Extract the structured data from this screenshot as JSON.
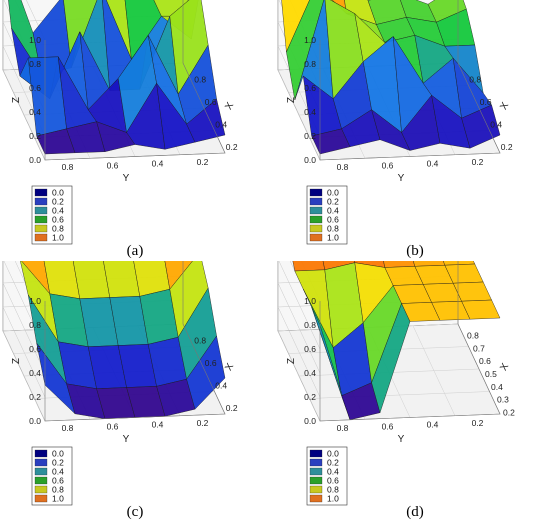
{
  "chart_data": [
    {
      "panel": "(a)",
      "type": "surface",
      "xlabel": "X",
      "ylabel": "Y",
      "zlabel": "Z",
      "x_ticks": [
        "0.2",
        "0.4",
        "0.6",
        "0.8"
      ],
      "y_ticks": [
        "0.8",
        "0.6",
        "0.4",
        "0.2"
      ],
      "z_ticks": [
        "0.0",
        "0.2",
        "0.4",
        "0.6",
        "0.8",
        "1.0"
      ],
      "zlim": [
        0,
        1
      ],
      "legend": [
        "0.0",
        "0.2",
        "0.4",
        "0.6",
        "0.8",
        "1.0"
      ],
      "legend_position": "bottom-left",
      "grid": true,
      "z_surface": [
        [
          1.0,
          0.3,
          0.6,
          0.75,
          0.7,
          0.55,
          1.0
        ],
        [
          0.5,
          0.1,
          0.15,
          0.8,
          0.2,
          0.55,
          0.35
        ],
        [
          0.25,
          0.05,
          0.6,
          0.1,
          0.1,
          0.7,
          0.9
        ],
        [
          0.55,
          0.55,
          0.1,
          0.35,
          0.7,
          0.2,
          0.6
        ],
        [
          0.05,
          0.1,
          0.15,
          0.05,
          0.45,
          0.1,
          0.3
        ],
        [
          0.05,
          0.05,
          0.05,
          0.1,
          0.05,
          0.1,
          0.15
        ]
      ]
    },
    {
      "panel": "(b)",
      "type": "surface",
      "xlabel": "X",
      "ylabel": "Y",
      "zlabel": "Z",
      "x_ticks": [
        "0.2",
        "0.4",
        "0.6",
        "0.8"
      ],
      "y_ticks": [
        "0.8",
        "0.6",
        "0.4",
        "0.2"
      ],
      "z_ticks": [
        "0.0",
        "0.2",
        "0.4",
        "0.6",
        "0.8",
        "1.0"
      ],
      "zlim": [
        0,
        1
      ],
      "legend": [
        "0.0",
        "0.2",
        "0.4",
        "0.6",
        "0.8",
        "1.0"
      ],
      "legend_position": "bottom-left",
      "grid": true,
      "z_surface": [
        [
          0.9,
          1.0,
          0.95,
          0.55,
          0.6,
          0.5,
          0.65
        ],
        [
          0.3,
          0.85,
          0.6,
          0.5,
          0.55,
          0.5,
          0.6
        ],
        [
          0.05,
          0.9,
          0.75,
          0.5,
          0.55,
          0.45,
          0.45
        ],
        [
          0.4,
          0.2,
          0.5,
          0.7,
          0.3,
          0.5,
          0.2
        ],
        [
          0.05,
          0.1,
          0.25,
          0.05,
          0.35,
          0.15,
          0.25
        ],
        [
          0.05,
          0.1,
          0.15,
          0.05,
          0.1,
          0.05,
          0.15
        ]
      ]
    },
    {
      "panel": "(c)",
      "type": "surface",
      "xlabel": "X",
      "ylabel": "Y",
      "zlabel": "Z",
      "x_ticks": [
        "0.2",
        "0.4",
        "0.6",
        "0.8"
      ],
      "y_ticks": [
        "0.8",
        "0.6",
        "0.4",
        "0.2"
      ],
      "z_ticks": [
        "0.0",
        "0.2",
        "0.4",
        "0.6",
        "0.8",
        "1.0"
      ],
      "zlim": [
        0,
        1
      ],
      "legend": [
        "0.0",
        "0.2",
        "0.4",
        "0.6",
        "0.8",
        "1.0"
      ],
      "legend_position": "bottom-left",
      "grid": true,
      "z_surface": [
        [
          1.0,
          1.0,
          1.0,
          1.0,
          1.0,
          1.0,
          1.0
        ],
        [
          1.0,
          0.85,
          0.8,
          0.8,
          0.8,
          0.85,
          1.0
        ],
        [
          0.9,
          0.6,
          0.55,
          0.55,
          0.55,
          0.6,
          0.9
        ],
        [
          0.75,
          0.35,
          0.3,
          0.3,
          0.3,
          0.35,
          0.75
        ],
        [
          0.5,
          0.15,
          0.1,
          0.1,
          0.1,
          0.15,
          0.5
        ],
        [
          0.3,
          0.05,
          0.0,
          0.0,
          0.0,
          0.05,
          0.3
        ]
      ]
    },
    {
      "panel": "(d)",
      "type": "surface",
      "xlabel": "X",
      "ylabel": "Y",
      "zlabel": "Z",
      "x_ticks": [
        "0.2",
        "0.3",
        "0.4",
        "0.5",
        "0.6",
        "0.7",
        "0.8"
      ],
      "y_ticks": [
        "0.8",
        "0.6",
        "0.4",
        "0.2"
      ],
      "z_ticks": [
        "0.0",
        "0.2",
        "0.4",
        "0.6",
        "0.8",
        "1.0"
      ],
      "zlim": [
        0,
        1
      ],
      "legend": [
        "0.0",
        "0.2",
        "0.4",
        "0.6",
        "0.8",
        "1.0"
      ],
      "legend_position": "bottom-left",
      "grid": true,
      "z_surface": [
        [
          1.0,
          0.95,
          1.0,
          0.95,
          1.0,
          0.9,
          0.85
        ],
        [
          1.0,
          1.0,
          0.95,
          1.0,
          0.9,
          0.85,
          0.8
        ],
        [
          0.8,
          0.8,
          0.85,
          0.8,
          0.8,
          0.8,
          0.8
        ],
        [
          0.8,
          0.3,
          0.5,
          0.8,
          0.8,
          0.8,
          0.8
        ],
        [
          0.8,
          0.05,
          0.15,
          0.8,
          0.8,
          0.8,
          0.8
        ],
        [
          0.8,
          0.0,
          0.05,
          0.8,
          0.8,
          0.8,
          0.8
        ]
      ]
    }
  ],
  "legend_colors": [
    "#000080",
    "#2a3fbf",
    "#2e8f9a",
    "#2aa02a",
    "#c8c820",
    "#e07020"
  ]
}
